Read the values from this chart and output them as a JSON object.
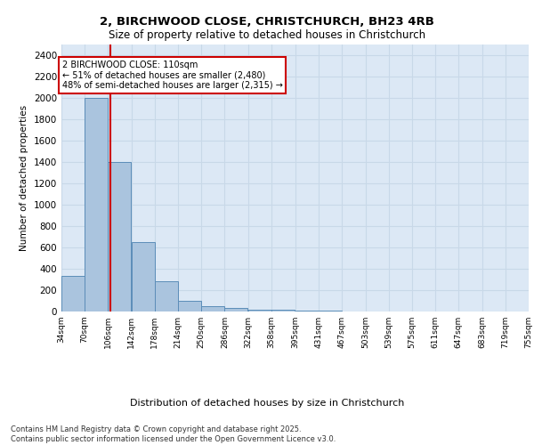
{
  "title_line1": "2, BIRCHWOOD CLOSE, CHRISTCHURCH, BH23 4RB",
  "title_line2": "Size of property relative to detached houses in Christchurch",
  "xlabel": "Distribution of detached houses by size in Christchurch",
  "ylabel": "Number of detached properties",
  "bin_edges": [
    34,
    70,
    106,
    142,
    178,
    214,
    250,
    286,
    322,
    358,
    395,
    431,
    467,
    503,
    539,
    575,
    611,
    647,
    683,
    719,
    755
  ],
  "bar_heights": [
    330,
    2000,
    1400,
    650,
    285,
    100,
    50,
    35,
    20,
    15,
    8,
    5,
    3,
    2,
    1,
    1,
    1,
    0,
    0,
    0
  ],
  "bar_color": "#aac4de",
  "bar_edgecolor": "#5b8db8",
  "grid_color": "#c8d8e8",
  "bg_color": "#dce8f5",
  "property_size": 110,
  "red_line_color": "#cc0000",
  "annotation_text": "2 BIRCHWOOD CLOSE: 110sqm\n← 51% of detached houses are smaller (2,480)\n48% of semi-detached houses are larger (2,315) →",
  "annotation_box_color": "#cc0000",
  "footer_text": "Contains HM Land Registry data © Crown copyright and database right 2025.\nContains public sector information licensed under the Open Government Licence v3.0.",
  "yticks": [
    0,
    200,
    400,
    600,
    800,
    1000,
    1200,
    1400,
    1600,
    1800,
    2000,
    2200,
    2400
  ],
  "ylim": [
    0,
    2500
  ]
}
